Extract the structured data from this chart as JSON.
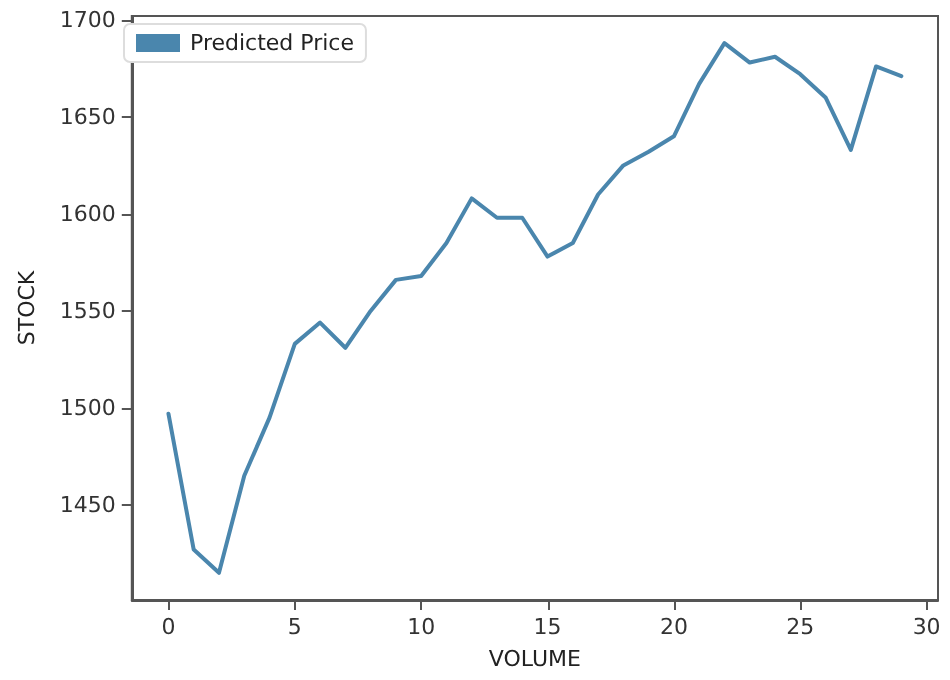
{
  "chart_data": {
    "type": "line",
    "xlabel": "VOLUME",
    "ylabel": "STOCK",
    "x": [
      0,
      1,
      2,
      3,
      4,
      5,
      6,
      7,
      8,
      9,
      10,
      11,
      12,
      13,
      14,
      15,
      16,
      17,
      18,
      19,
      20,
      21,
      22,
      23,
      24,
      25,
      26,
      27,
      28,
      29
    ],
    "series": [
      {
        "name": "Predicted Price",
        "color": "#4a86ad",
        "values": [
          1497,
          1427,
          1415,
          1465,
          1495,
          1533,
          1544,
          1531,
          1550,
          1566,
          1568,
          1585,
          1608,
          1598,
          1598,
          1578,
          1585,
          1610,
          1625,
          1632,
          1640,
          1667,
          1688,
          1678,
          1681,
          1672,
          1660,
          1633,
          1676,
          1671
        ]
      }
    ],
    "xlim": [
      -1.45,
      30.45
    ],
    "xticks": [
      0,
      5,
      10,
      15,
      20,
      25,
      30
    ],
    "ylim": [
      1401,
      1702
    ],
    "yticks": [
      1450,
      1500,
      1550,
      1600,
      1650,
      1700
    ],
    "grid": false,
    "legend": "top left",
    "marker": "none",
    "line_style": "solid"
  }
}
